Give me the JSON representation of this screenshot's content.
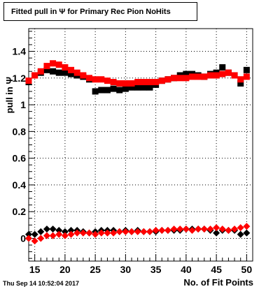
{
  "title": "Fitted pull in Ψ  for Primary Rec Pion NoHits",
  "timestamp": "Thu Sep 14 10:52:04 2017",
  "chart_data": {
    "type": "scatter",
    "xlabel": "No. of Fit Points",
    "ylabel": "pull in Ψ",
    "xlim": [
      14,
      51
    ],
    "ylim": [
      -0.17,
      1.57
    ],
    "xticks": [
      15,
      20,
      25,
      30,
      35,
      40,
      45,
      50
    ],
    "yticks": [
      0,
      0.2,
      0.4,
      0.6,
      0.8,
      1,
      1.2,
      1.4
    ],
    "grid": true,
    "x": [
      14,
      15,
      16,
      17,
      18,
      19,
      20,
      21,
      22,
      23,
      24,
      25,
      26,
      27,
      28,
      29,
      30,
      31,
      32,
      33,
      34,
      35,
      36,
      37,
      38,
      39,
      40,
      41,
      42,
      43,
      44,
      45,
      46,
      47,
      48,
      49,
      50
    ],
    "series": [
      {
        "marker": "square",
        "color": "#000000",
        "values": [
          1.17,
          1.22,
          1.24,
          1.26,
          1.25,
          1.24,
          1.24,
          1.23,
          1.22,
          1.21,
          1.19,
          1.1,
          1.11,
          1.11,
          1.12,
          1.11,
          1.12,
          1.13,
          1.13,
          1.13,
          1.13,
          1.15,
          1.18,
          1.19,
          1.2,
          1.22,
          1.23,
          1.23,
          1.22,
          1.21,
          1.23,
          1.24,
          1.28,
          1.24,
          1.22,
          1.16,
          1.26
        ]
      },
      {
        "marker": "square",
        "color": "#ff0000",
        "values": [
          1.18,
          1.22,
          1.25,
          1.29,
          1.31,
          1.3,
          1.28,
          1.26,
          1.24,
          1.22,
          1.2,
          1.19,
          1.19,
          1.18,
          1.17,
          1.16,
          1.16,
          1.16,
          1.17,
          1.17,
          1.17,
          1.17,
          1.18,
          1.19,
          1.2,
          1.2,
          1.2,
          1.21,
          1.21,
          1.21,
          1.22,
          1.22,
          1.23,
          1.24,
          1.22,
          1.19,
          1.21
        ]
      },
      {
        "marker": "diamond",
        "color": "#000000",
        "values": [
          0.03,
          0.03,
          0.05,
          0.07,
          0.07,
          0.06,
          0.05,
          0.06,
          0.06,
          0.05,
          0.04,
          0.05,
          0.06,
          0.06,
          0.06,
          0.05,
          0.06,
          0.05,
          0.06,
          0.05,
          0.05,
          0.05,
          0.06,
          0.06,
          0.06,
          0.06,
          0.07,
          0.07,
          0.07,
          0.07,
          0.06,
          0.04,
          0.06,
          0.06,
          0.06,
          0.03,
          0.04
        ]
      },
      {
        "marker": "diamond",
        "color": "#ff0000",
        "values": [
          0.0,
          -0.02,
          0.0,
          0.02,
          0.02,
          0.03,
          0.02,
          0.03,
          0.04,
          0.04,
          0.04,
          0.03,
          0.04,
          0.04,
          0.04,
          0.05,
          0.05,
          0.05,
          0.05,
          0.05,
          0.05,
          0.06,
          0.06,
          0.06,
          0.07,
          0.07,
          0.07,
          0.06,
          0.07,
          0.07,
          0.07,
          0.08,
          0.07,
          0.06,
          0.07,
          0.08,
          0.09
        ]
      }
    ]
  }
}
